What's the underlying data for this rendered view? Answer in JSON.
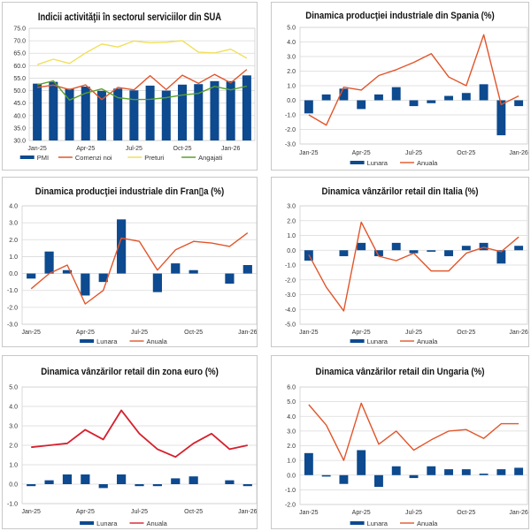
{
  "chart_data": [
    {
      "type": "bar",
      "title": "Indicii activităţii în sectorul serviciilor din SUA",
      "categories": [
        "Jan-25",
        "Feb-25",
        "Mar-25",
        "Apr-25",
        "May-25",
        "Jun-25",
        "Jul-25",
        "Aug-25",
        "Sep-25",
        "Oct-25",
        "Nov-25",
        "Dec-25",
        "Jan-26",
        "Feb-26"
      ],
      "x_tick_labels": [
        "Jan-25",
        "Apr-25",
        "Jul-25",
        "Oct-25",
        "Jan-26"
      ],
      "ylim": [
        30.0,
        75.0
      ],
      "y_ticks": [
        "30.0",
        "35.0",
        "40.0",
        "45.0",
        "50.0",
        "55.0",
        "60.0",
        "65.0",
        "70.0",
        "75.0"
      ],
      "grid": true,
      "legend_position": "bottom",
      "series": [
        {
          "name": "PMI",
          "kind": "bar",
          "color": "#0d4a8f",
          "values": [
            52.8,
            53.5,
            50.8,
            51.6,
            49.9,
            50.8,
            50.1,
            52.0,
            50.0,
            52.4,
            52.6,
            53.8,
            53.8,
            56.1
          ]
        },
        {
          "name": "Comenzi noi",
          "kind": "line",
          "color": "#e2552a",
          "values": [
            51.3,
            52.2,
            50.4,
            52.3,
            46.4,
            51.3,
            50.3,
            56.0,
            50.4,
            56.2,
            52.9,
            56.5,
            53.1,
            58.5
          ]
        },
        {
          "name": "Preturi",
          "kind": "line",
          "color": "#f0e05a",
          "values": [
            60.4,
            62.6,
            60.9,
            65.1,
            68.7,
            67.5,
            69.9,
            69.2,
            69.4,
            70.0,
            65.4,
            65.1,
            66.6,
            63.0
          ]
        },
        {
          "name": "Angajati",
          "kind": "line",
          "color": "#5aa02c",
          "values": [
            52.3,
            53.9,
            46.2,
            49.0,
            50.7,
            47.2,
            46.4,
            46.5,
            47.2,
            48.2,
            48.9,
            51.7,
            50.3,
            51.8
          ]
        }
      ]
    },
    {
      "type": "bar",
      "title": "Dinamica producţiei industriale din Spania (%)",
      "categories": [
        "Jan-25",
        "Feb-25",
        "Mar-25",
        "Apr-25",
        "May-25",
        "Jun-25",
        "Jul-25",
        "Aug-25",
        "Sep-25",
        "Oct-25",
        "Nov-25",
        "Dec-25",
        "Jan-26"
      ],
      "x_tick_labels": [
        "Jan-25",
        "Apr-25",
        "Jul-25",
        "Oct-25",
        "Jan-26"
      ],
      "ylim": [
        -3.0,
        5.0
      ],
      "y_ticks": [
        "-3.0",
        "-2.0",
        "-1.0",
        "0.0",
        "1.0",
        "2.0",
        "3.0",
        "4.0",
        "5.0"
      ],
      "grid": true,
      "legend_position": "bottom",
      "series": [
        {
          "name": "Lunara",
          "kind": "bar",
          "color": "#0d4a8f",
          "values": [
            -0.9,
            0.4,
            0.8,
            -0.6,
            0.4,
            0.9,
            -0.4,
            -0.2,
            0.3,
            0.5,
            1.1,
            -2.4,
            -0.4
          ]
        },
        {
          "name": "Anuala",
          "kind": "line",
          "color": "#e2552a",
          "values": [
            -1.0,
            -1.7,
            0.9,
            0.7,
            1.7,
            2.1,
            2.6,
            3.2,
            1.6,
            1.0,
            4.5,
            -0.3,
            0.3
          ]
        }
      ]
    },
    {
      "type": "bar",
      "title": "Dinamica producţiei industriale din Fran▯a (%)",
      "categories": [
        "Jan-25",
        "Feb-25",
        "Mar-25",
        "Apr-25",
        "May-25",
        "Jun-25",
        "Jul-25",
        "Aug-25",
        "Sep-25",
        "Oct-25",
        "Nov-25",
        "Dec-25",
        "Jan-26"
      ],
      "x_tick_labels": [
        "Jan-25",
        "Apr-25",
        "Jul-25",
        "Oct-25",
        "Jan-26"
      ],
      "ylim": [
        -3.0,
        4.0
      ],
      "y_ticks": [
        "-3.0",
        "-2.0",
        "-1.0",
        "0.0",
        "1.0",
        "2.0",
        "3.0",
        "4.0"
      ],
      "grid": true,
      "legend_position": "bottom",
      "series": [
        {
          "name": "Lunara",
          "kind": "bar",
          "color": "#0d4a8f",
          "values": [
            -0.3,
            1.3,
            0.2,
            -1.3,
            -0.5,
            3.2,
            0.0,
            -1.1,
            0.6,
            0.2,
            0.0,
            -0.6,
            0.5
          ]
        },
        {
          "name": "Anuala",
          "kind": "line",
          "color": "#e2552a",
          "values": [
            -0.9,
            0.0,
            0.5,
            -1.8,
            -1.0,
            2.1,
            1.9,
            0.2,
            1.4,
            1.9,
            1.8,
            1.6,
            2.4
          ]
        }
      ]
    },
    {
      "type": "bar",
      "title": "Dinamica vânzărilor retail din Italia (%)",
      "categories": [
        "Jan-25",
        "Feb-25",
        "Mar-25",
        "Apr-25",
        "May-25",
        "Jun-25",
        "Jul-25",
        "Aug-25",
        "Sep-25",
        "Oct-25",
        "Nov-25",
        "Dec-25",
        "Jan-26"
      ],
      "x_tick_labels": [
        "Jan-25",
        "Apr-25",
        "Jul-25",
        "Oct-25",
        "Jan-26"
      ],
      "ylim": [
        -5.0,
        3.0
      ],
      "y_ticks": [
        "-5.0",
        "-4.0",
        "-3.0",
        "-2.0",
        "-1.0",
        "0.0",
        "1.0",
        "2.0",
        "3.0"
      ],
      "grid": true,
      "legend_position": "bottom",
      "series": [
        {
          "name": "Lunara",
          "kind": "bar",
          "color": "#0d4a8f",
          "values": [
            -0.7,
            0.0,
            -0.4,
            0.5,
            -0.4,
            0.5,
            -0.2,
            -0.1,
            -0.4,
            0.3,
            0.5,
            -0.9,
            0.3
          ]
        },
        {
          "name": "Anuala",
          "kind": "line",
          "color": "#e2552a",
          "values": [
            -0.3,
            -2.5,
            -4.1,
            1.9,
            -0.4,
            -0.7,
            -0.2,
            -1.4,
            -1.4,
            -0.2,
            0.2,
            -0.1,
            0.9
          ]
        }
      ]
    },
    {
      "type": "bar",
      "title": "Dinamica vânzărilor retail din zona euro (%)",
      "categories": [
        "Jan-25",
        "Feb-25",
        "Mar-25",
        "Apr-25",
        "May-25",
        "Jun-25",
        "Jul-25",
        "Aug-25",
        "Sep-25",
        "Oct-25",
        "Nov-25",
        "Dec-25",
        "Jan-26"
      ],
      "x_tick_labels": [
        "Jan-25",
        "Apr-25",
        "Jul-25",
        "Oct-25",
        "Jan-26"
      ],
      "ylim": [
        -1.0,
        5.0
      ],
      "y_ticks": [
        "-1.0",
        "0.0",
        "1.0",
        "2.0",
        "3.0",
        "4.0",
        "5.0"
      ],
      "grid": true,
      "legend_position": "bottom",
      "series": [
        {
          "name": "Lunara",
          "kind": "bar",
          "color": "#0d4a8f",
          "values": [
            -0.1,
            0.2,
            0.5,
            0.5,
            -0.2,
            0.5,
            -0.1,
            -0.1,
            0.3,
            0.4,
            0.0,
            0.2,
            -0.1
          ]
        },
        {
          "name": "Anuala",
          "kind": "line",
          "color": "#d6202e",
          "values": [
            1.9,
            2.0,
            2.1,
            2.8,
            2.3,
            3.8,
            2.6,
            1.8,
            1.4,
            2.1,
            2.6,
            1.8,
            2.0
          ]
        }
      ]
    },
    {
      "type": "bar",
      "title": "Dinamica vânzărilor retail din Ungaria (%)",
      "categories": [
        "Jan-25",
        "Feb-25",
        "Mar-25",
        "Apr-25",
        "May-25",
        "Jun-25",
        "Jul-25",
        "Aug-25",
        "Sep-25",
        "Oct-25",
        "Nov-25",
        "Dec-25",
        "Jan-26"
      ],
      "x_tick_labels": [
        "Jan-25",
        "Apr-25",
        "Jul-25",
        "Oct-25",
        "Jan-26"
      ],
      "ylim": [
        -2.0,
        6.0
      ],
      "y_ticks": [
        "-2.0",
        "-1.0",
        "0.0",
        "1.0",
        "2.0",
        "3.0",
        "4.0",
        "5.0",
        "6.0"
      ],
      "grid": true,
      "legend_position": "bottom",
      "series": [
        {
          "name": "Lunara",
          "kind": "bar",
          "color": "#0d4a8f",
          "values": [
            1.5,
            -0.1,
            -0.6,
            1.7,
            -0.8,
            0.6,
            -0.2,
            0.6,
            0.4,
            0.4,
            0.1,
            0.4,
            0.5
          ]
        },
        {
          "name": "Anuala",
          "kind": "line",
          "color": "#e2552a",
          "values": [
            4.8,
            3.4,
            1.0,
            4.9,
            2.1,
            3.0,
            1.7,
            2.4,
            3.0,
            3.1,
            2.5,
            3.5,
            3.5
          ]
        }
      ]
    }
  ]
}
